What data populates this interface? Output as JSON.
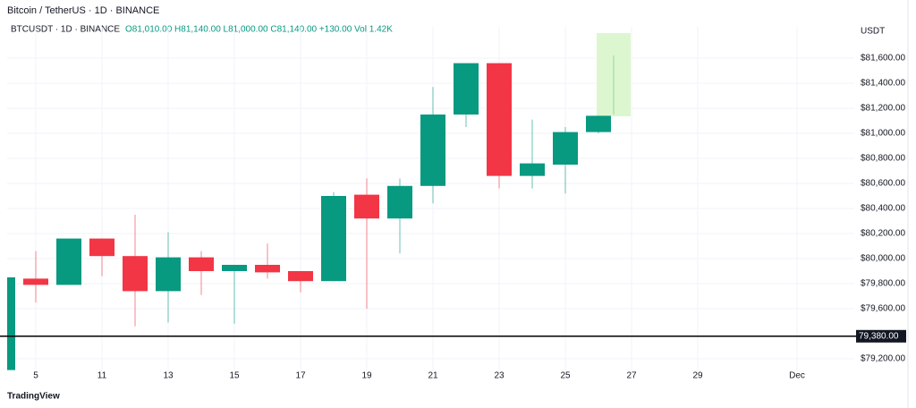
{
  "chart_data": {
    "type": "candlestick",
    "title": "Bitcoin / TetherUS · 1D · BINANCE",
    "subtitle": "BTCUSDT · 1D · BINANCE",
    "ohlc_text": "O81,010.00 H81,140.00 L81,000.00 C81,140.00 +130.00 Vol 1.42K",
    "currency": "USDT",
    "brand": "TradingView",
    "categories": [
      null,
      "5",
      null,
      "11",
      null,
      "13",
      null,
      "15",
      null,
      "17",
      null,
      "19",
      null,
      "21",
      null,
      "23",
      null,
      "25",
      null,
      "27",
      null,
      "29",
      null,
      null,
      "Dec"
    ],
    "open": [
      79110,
      79840,
      79790,
      80160,
      80020,
      79740,
      80010,
      79900,
      79950,
      79900,
      79820,
      80510,
      80320,
      80580,
      81150,
      81560,
      80660,
      80750,
      81010,
      null,
      null,
      null,
      null,
      null,
      null
    ],
    "high": [
      79850,
      80060,
      80160,
      80160,
      80350,
      80210,
      80060,
      79950,
      80120,
      79900,
      80530,
      80640,
      80640,
      81370,
      81560,
      81560,
      81110,
      81050,
      81140,
      null,
      null,
      null,
      null,
      null,
      null
    ],
    "low": [
      79110,
      79650,
      79790,
      79860,
      79460,
      79490,
      79710,
      79480,
      79840,
      79730,
      79820,
      79600,
      80040,
      80440,
      81050,
      80560,
      80560,
      80520,
      81000,
      null,
      null,
      null,
      null,
      null,
      null
    ],
    "close": [
      79850,
      79790,
      80160,
      80020,
      79740,
      80010,
      79900,
      79950,
      79890,
      79820,
      80500,
      80320,
      80580,
      81150,
      81560,
      80660,
      80760,
      81010,
      81140,
      null,
      null,
      null,
      null,
      null,
      null
    ],
    "up_color": "#089981",
    "down_color": "#f23645",
    "ylim": [
      79100,
      81800
    ],
    "yticks": [
      {
        "value": 81600,
        "label": "$81,600.00"
      },
      {
        "value": 81400,
        "label": "$81,400.00"
      },
      {
        "value": 81200,
        "label": "$81,200.00"
      },
      {
        "value": 81000,
        "label": "$81,000.00"
      },
      {
        "value": 80800,
        "label": "$80,800.00"
      },
      {
        "value": 80600,
        "label": "$80,600.00"
      },
      {
        "value": 80400,
        "label": "$80,400.00"
      },
      {
        "value": 80200,
        "label": "$80,200.00"
      },
      {
        "value": 80000,
        "label": "$80,000.00"
      },
      {
        "value": 79800,
        "label": "$79,800.00"
      },
      {
        "value": 79600,
        "label": "$79,600.00"
      },
      {
        "value": 79200,
        "label": "$79,200.00"
      }
    ],
    "grid": true,
    "price_line": {
      "value": 79380,
      "label": "79,380.00"
    }
  }
}
